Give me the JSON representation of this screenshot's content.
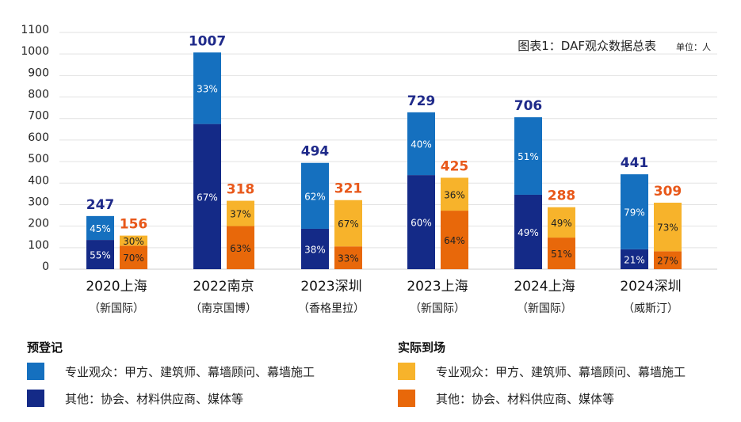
{
  "chart_data": {
    "type": "bar",
    "stacked": true,
    "title": "图表1：DAF观众数据总表",
    "unit": "单位：人",
    "categories": [
      [
        "2020上海",
        "（新国际）"
      ],
      [
        "2022南京",
        "（南京国博）"
      ],
      [
        "2023深圳",
        "（香格里拉）"
      ],
      [
        "2023上海",
        "（新国际）"
      ],
      [
        "2024上海",
        "（新国际）"
      ],
      [
        "2024深圳",
        "（威斯汀）"
      ]
    ],
    "ylim": [
      0,
      1100
    ],
    "yticks": [
      0,
      100,
      200,
      300,
      400,
      500,
      600,
      700,
      800,
      900,
      1000,
      1100
    ],
    "grid": true,
    "groups": [
      {
        "name": "预登记",
        "totals": [
          247,
          1007,
          494,
          729,
          706,
          441
        ],
        "total_color": "#1f2a8a",
        "series": [
          {
            "name": "专业观众：甲方、建筑师、幕墙顾问、幕墙施工",
            "percent": [
              45,
              33,
              62,
              40,
              51,
              79
            ],
            "color": "#1570bf"
          },
          {
            "name": "其他：协会、材料供应商、媒体等",
            "percent": [
              55,
              67,
              38,
              60,
              49,
              21
            ],
            "color": "#142a87"
          }
        ]
      },
      {
        "name": "实际到场",
        "totals": [
          156,
          318,
          321,
          425,
          288,
          309
        ],
        "total_color": "#e8581a",
        "series": [
          {
            "name": "专业观众：甲方、建筑师、幕墙顾问、幕墙施工",
            "percent": [
              30,
              37,
              67,
              36,
              49,
              73
            ],
            "color": "#f7b32b"
          },
          {
            "name": "其他：协会、材料供应商、媒体等",
            "percent": [
              70,
              63,
              33,
              64,
              51,
              27
            ],
            "color": "#e8680a"
          }
        ]
      }
    ],
    "legend_placement": "bottom"
  }
}
